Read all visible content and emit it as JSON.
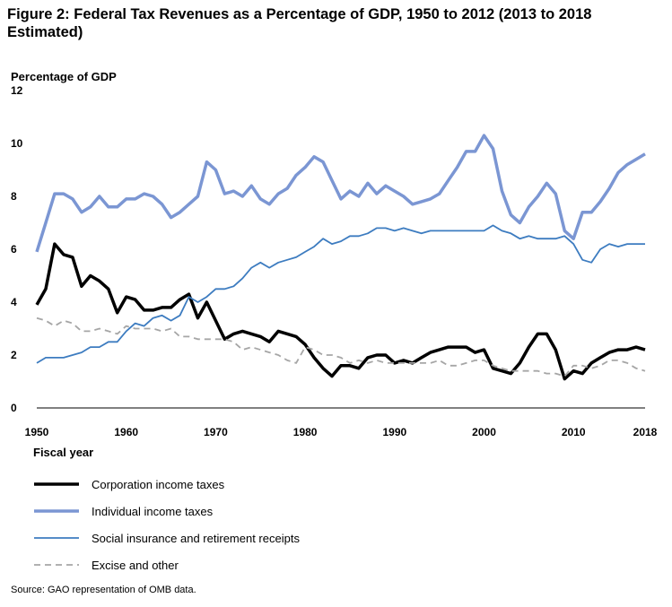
{
  "chart_data": {
    "type": "line",
    "title": "Figure 2: Federal Tax Revenues as a Percentage of GDP, 1950 to 2012 (2013 to 2018 Estimated)",
    "ylabel": "Percentage of GDP",
    "xlabel": "Fiscal year",
    "xlim": [
      1950,
      2018
    ],
    "ylim": [
      0,
      12
    ],
    "x_ticks": [
      "1950",
      "1960",
      "1970",
      "1980",
      "1990",
      "2000",
      "2010",
      "2018"
    ],
    "y_ticks": [
      "0",
      "2",
      "4",
      "6",
      "8",
      "10",
      "12"
    ],
    "grid": false,
    "legend_position": "bottom",
    "x": [
      1950,
      1951,
      1952,
      1953,
      1954,
      1955,
      1956,
      1957,
      1958,
      1959,
      1960,
      1961,
      1962,
      1963,
      1964,
      1965,
      1966,
      1967,
      1968,
      1969,
      1970,
      1971,
      1972,
      1973,
      1974,
      1975,
      1976,
      1977,
      1978,
      1979,
      1980,
      1981,
      1982,
      1983,
      1984,
      1985,
      1986,
      1987,
      1988,
      1989,
      1990,
      1991,
      1992,
      1993,
      1994,
      1995,
      1996,
      1997,
      1998,
      1999,
      2000,
      2001,
      2002,
      2003,
      2004,
      2005,
      2006,
      2007,
      2008,
      2009,
      2010,
      2011,
      2012,
      2013,
      2014,
      2015,
      2016,
      2017,
      2018
    ],
    "series": [
      {
        "name": "Corporation income taxes",
        "color": "#000000",
        "width": 3.5,
        "dash": "",
        "values": [
          3.9,
          4.5,
          6.2,
          5.8,
          5.7,
          4.6,
          5.0,
          4.8,
          4.5,
          3.6,
          4.2,
          4.1,
          3.7,
          3.7,
          3.8,
          3.8,
          4.1,
          4.3,
          3.4,
          4.0,
          3.3,
          2.6,
          2.8,
          2.9,
          2.8,
          2.7,
          2.5,
          2.9,
          2.8,
          2.7,
          2.4,
          1.9,
          1.5,
          1.2,
          1.6,
          1.6,
          1.5,
          1.9,
          2.0,
          2.0,
          1.7,
          1.8,
          1.7,
          1.9,
          2.1,
          2.2,
          2.3,
          2.3,
          2.3,
          2.1,
          2.2,
          1.5,
          1.4,
          1.3,
          1.7,
          2.3,
          2.8,
          2.8,
          2.2,
          1.1,
          1.4,
          1.3,
          1.7,
          1.9,
          2.1,
          2.2,
          2.2,
          2.3,
          2.2
        ]
      },
      {
        "name": "Individual income taxes",
        "color": "#7b96d3",
        "width": 3.5,
        "dash": "",
        "values": [
          5.9,
          7.0,
          8.1,
          8.1,
          7.9,
          7.4,
          7.6,
          8.0,
          7.6,
          7.6,
          7.9,
          7.9,
          8.1,
          8.0,
          7.7,
          7.2,
          7.4,
          7.7,
          8.0,
          9.3,
          9.0,
          8.1,
          8.2,
          8.0,
          8.4,
          7.9,
          7.7,
          8.1,
          8.3,
          8.8,
          9.1,
          9.5,
          9.3,
          8.6,
          7.9,
          8.2,
          8.0,
          8.5,
          8.1,
          8.4,
          8.2,
          8.0,
          7.7,
          7.8,
          7.9,
          8.1,
          8.6,
          9.1,
          9.7,
          9.7,
          10.3,
          9.8,
          8.2,
          7.3,
          7.0,
          7.6,
          8.0,
          8.5,
          8.1,
          6.7,
          6.4,
          7.4,
          7.4,
          7.8,
          8.3,
          8.9,
          9.2,
          9.4,
          9.6
        ]
      },
      {
        "name": "Social insurance and retirement receipts",
        "color": "#3d7cc0",
        "width": 1.8,
        "dash": "",
        "values": [
          1.7,
          1.9,
          1.9,
          1.9,
          2.0,
          2.1,
          2.3,
          2.3,
          2.5,
          2.5,
          2.9,
          3.2,
          3.1,
          3.4,
          3.5,
          3.3,
          3.5,
          4.2,
          4.0,
          4.2,
          4.5,
          4.5,
          4.6,
          4.9,
          5.3,
          5.5,
          5.3,
          5.5,
          5.6,
          5.7,
          5.9,
          6.1,
          6.4,
          6.2,
          6.3,
          6.5,
          6.5,
          6.6,
          6.8,
          6.8,
          6.7,
          6.8,
          6.7,
          6.6,
          6.7,
          6.7,
          6.7,
          6.7,
          6.7,
          6.7,
          6.7,
          6.9,
          6.7,
          6.6,
          6.4,
          6.5,
          6.4,
          6.4,
          6.4,
          6.5,
          6.2,
          5.6,
          5.5,
          6.0,
          6.2,
          6.1,
          6.2,
          6.2,
          6.2
        ]
      },
      {
        "name": "Excise and other",
        "color": "#a6a6a6",
        "width": 1.8,
        "dash": "7,5",
        "values": [
          3.4,
          3.3,
          3.1,
          3.3,
          3.2,
          2.9,
          2.9,
          3.0,
          2.9,
          2.8,
          3.1,
          3.0,
          3.0,
          3.0,
          2.9,
          3.0,
          2.7,
          2.7,
          2.6,
          2.6,
          2.6,
          2.6,
          2.5,
          2.2,
          2.3,
          2.2,
          2.1,
          2.0,
          1.8,
          1.7,
          2.3,
          2.2,
          2.0,
          2.0,
          1.9,
          1.7,
          1.8,
          1.7,
          1.8,
          1.7,
          1.7,
          1.7,
          1.7,
          1.7,
          1.7,
          1.8,
          1.6,
          1.6,
          1.7,
          1.8,
          1.8,
          1.6,
          1.5,
          1.4,
          1.4,
          1.4,
          1.4,
          1.3,
          1.3,
          1.2,
          1.6,
          1.6,
          1.5,
          1.6,
          1.8,
          1.8,
          1.7,
          1.5,
          1.4
        ]
      }
    ]
  },
  "source": "Source: GAO representation of OMB data."
}
